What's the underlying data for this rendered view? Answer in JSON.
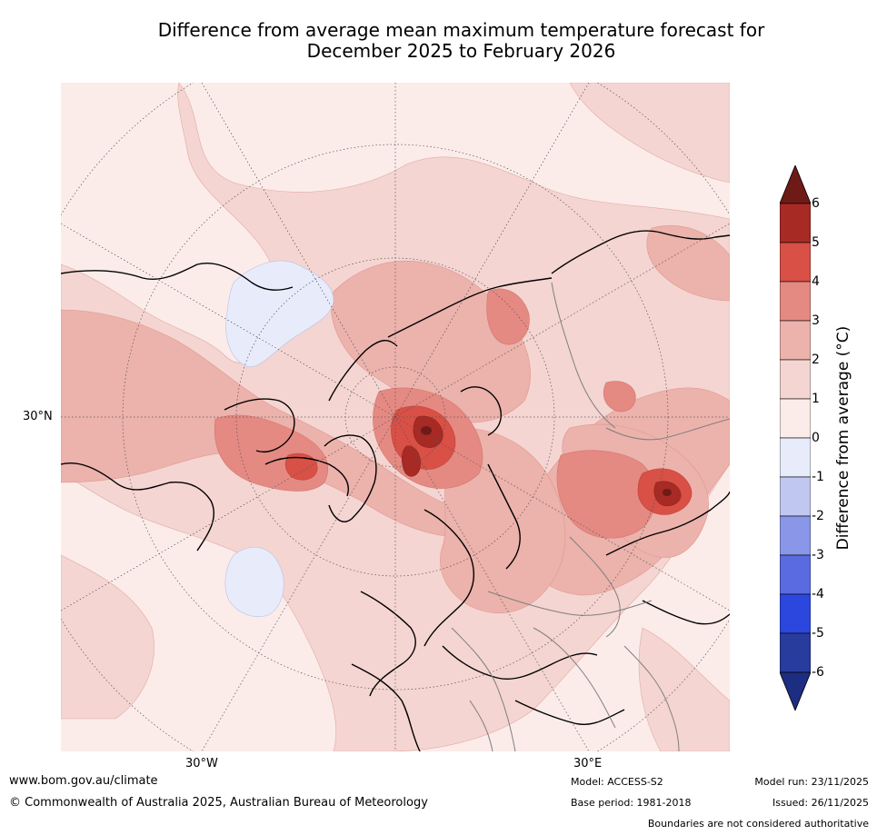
{
  "title": {
    "line1": "Difference from average mean maximum temperature forecast for",
    "line2": "December 2025 to February 2026"
  },
  "map": {
    "projection": "north polar stereographic",
    "lat_label": "30°N",
    "lon_labels": [
      "30°W",
      "30°E"
    ],
    "colors": {
      "anom_0_1": "#fbece9",
      "anom_1_2": "#f4d5d1",
      "anom_2_3": "#ecb2ac",
      "anom_3_4": "#e48a83",
      "anom_4_5": "#d85046",
      "anom_5_6": "#a82a24",
      "anom_gt_6": "#6e1a17",
      "anom_neg_0_1": "#e8ebfa",
      "land_outline": "#000000",
      "border": "#7f7f7f"
    }
  },
  "colorbar": {
    "label": "Difference from average ($^\\circ$C)",
    "label_display": "Difference from average (°C)",
    "ticks": [
      "6",
      "5",
      "4",
      "3",
      "2",
      "1",
      "0",
      "-1",
      "-2",
      "-3",
      "-4",
      "-5",
      "-6"
    ],
    "colors": [
      "#6e1a17",
      "#a82a24",
      "#d85046",
      "#e48a83",
      "#ecb2ac",
      "#f4d5d1",
      "#fbece9",
      "#e8ebfa",
      "#c0c7f0",
      "#8a96e8",
      "#5a6ae0",
      "#2c47dd",
      "#283c9e",
      "#1d2d82"
    ]
  },
  "footer": {
    "website": "www.bom.gov.au/climate",
    "copyright": "© Commonwealth of Australia 2025, Australian Bureau of Meteorology",
    "model": "Model: ACCESS-S2",
    "base_period": "Base period: 1981-2018",
    "model_run": "Model run: 23/11/2025",
    "issued": "Issued: 26/11/2025",
    "disclaimer": "Boundaries are not considered authoritative"
  }
}
